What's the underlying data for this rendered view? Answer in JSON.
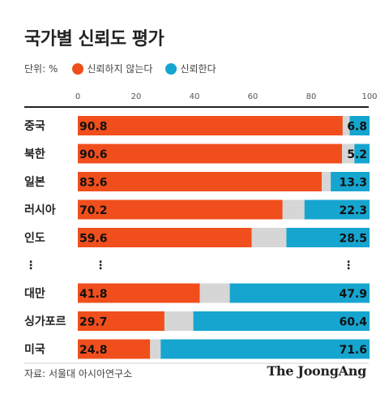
{
  "title": "국가별 신뢰도 평가",
  "legend": {
    "unit": "단위: %",
    "items": [
      {
        "label": "신뢰하지 않는다",
        "color": "#F04E1C"
      },
      {
        "label": "신뢰한다",
        "color": "#16A5CF"
      }
    ]
  },
  "source": "자료: 서울대 아시아연구소",
  "brand": "The JoongAng",
  "chart_data": {
    "type": "bar",
    "orientation": "horizontal",
    "stacked": true,
    "categories": [
      "중국",
      "북한",
      "일본",
      "러시아",
      "인도",
      "대만",
      "싱가포르",
      "미국"
    ],
    "gap_after_index": 4,
    "series": [
      {
        "name": "신뢰하지 않는다",
        "color": "#F04E1C",
        "values": [
          90.8,
          90.6,
          83.6,
          70.2,
          59.6,
          41.8,
          29.7,
          24.8
        ]
      },
      {
        "color": "#D6D6D6",
        "values": [
          2.4,
          4.2,
          3.1,
          7.5,
          11.9,
          10.3,
          9.9,
          3.6
        ],
        "show_labels": false
      },
      {
        "name": "신뢰한다",
        "color": "#16A5CF",
        "values": [
          6.8,
          5.2,
          13.3,
          22.3,
          28.5,
          47.9,
          60.4,
          71.6
        ]
      }
    ],
    "xlim": [
      0,
      100
    ],
    "xticks": [
      0,
      20,
      40,
      60,
      80,
      100
    ],
    "ellipsis": "⋮",
    "grid": false,
    "legend_position": "top-left"
  }
}
